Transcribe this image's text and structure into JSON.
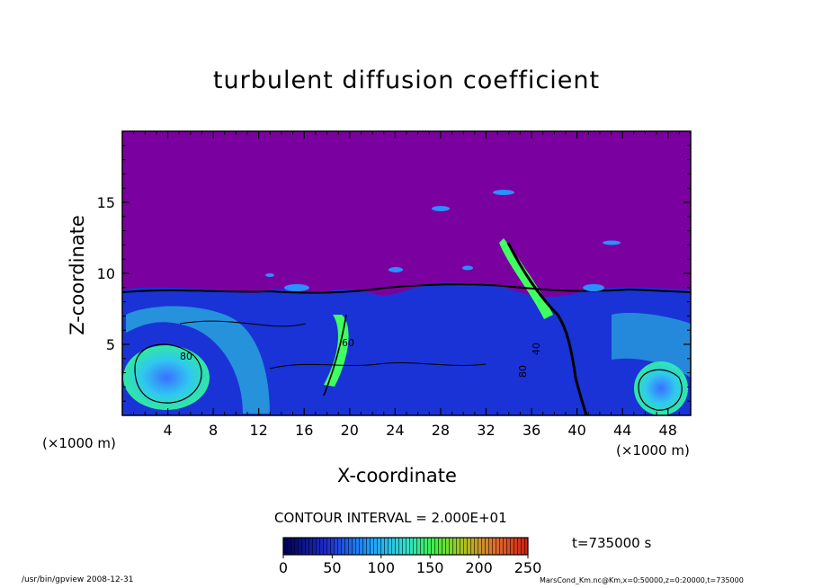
{
  "chart_data": {
    "type": "heatmap",
    "title": "turbulent diffusion coefficient",
    "xlabel": "X-coordinate",
    "ylabel": "Z-coordinate",
    "x_unit_label": "(×1000 m)",
    "xlim": [
      0,
      50
    ],
    "ylim": [
      0,
      20
    ],
    "x_ticks": [
      4,
      8,
      12,
      16,
      20,
      24,
      28,
      32,
      36,
      40,
      44,
      48
    ],
    "y_ticks": [
      5,
      10,
      15
    ],
    "contour_interval_text": "CONTOUR INTERVAL = 2.000E+01",
    "colorbar": {
      "min": 0,
      "max": 250,
      "ticks": [
        0,
        50,
        100,
        150,
        200,
        250
      ]
    },
    "time_label": "t=735000 s",
    "contour_labels": [
      "80",
      "60",
      "80",
      "40"
    ]
  },
  "colors": {
    "background_field": "#7b00a0",
    "low": "#1a33d6",
    "mid": "#2a8fff",
    "cyan": "#30e0e0",
    "green": "#40ff60"
  },
  "footer": {
    "left": "/usr/bin/gpview   2008-12-31",
    "right": "MarsCond_Km.nc@Km,x=0:50000,z=0:20000,t=735000"
  }
}
